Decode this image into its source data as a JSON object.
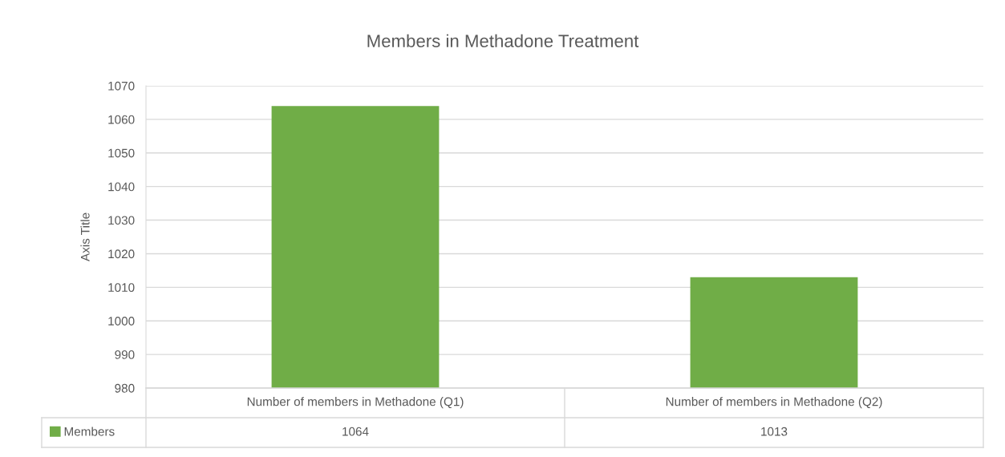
{
  "chart_data": {
    "type": "bar",
    "title": "Members in Methadone Treatment",
    "ylabel": "Axis Title",
    "categories": [
      "Number of members in Methadone (Q1)",
      "Number of members in Methadone (Q2)"
    ],
    "series": [
      {
        "name": "Members",
        "color": "#70ad47",
        "values": [
          1064,
          1013
        ]
      }
    ],
    "ylim": [
      980,
      1070
    ],
    "yticks": [
      980,
      990,
      1000,
      1010,
      1020,
      1030,
      1040,
      1050,
      1060,
      1070
    ],
    "grid": "y",
    "data_labels": true,
    "legend": "bottom left"
  }
}
